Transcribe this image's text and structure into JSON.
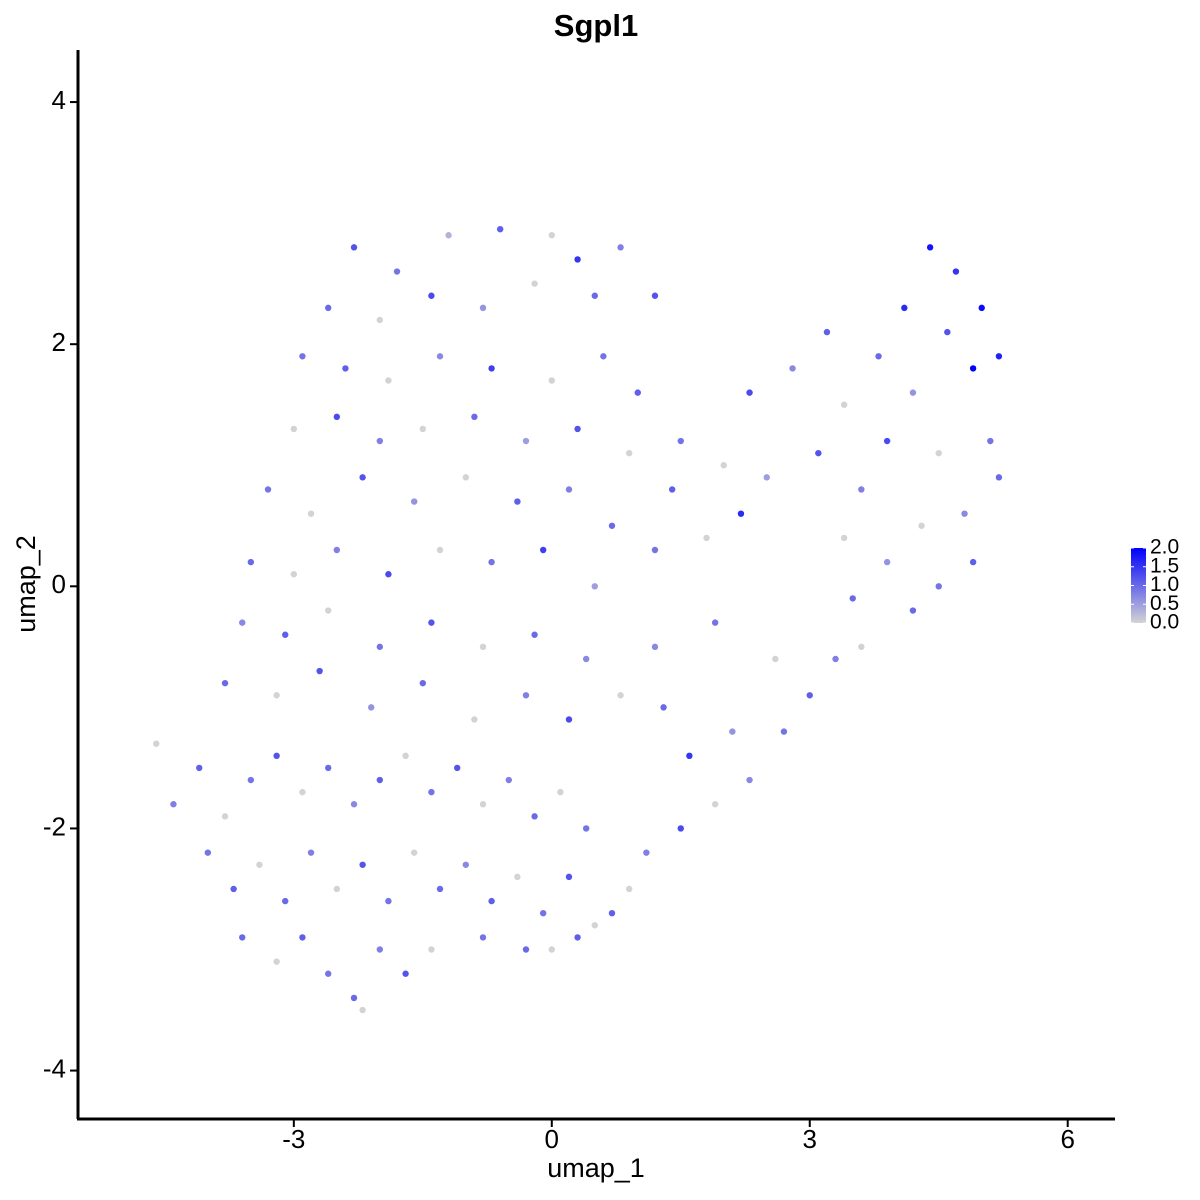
{
  "chart_data": {
    "type": "scatter",
    "title": "Sgpl1",
    "x_label": "umap_1",
    "y_label": "umap_2",
    "xlim": [
      -5.51,
      6.55
    ],
    "ylim": [
      -4.4,
      4.43
    ],
    "xticks": [
      -3,
      0,
      3,
      6
    ],
    "yticks": [
      -4,
      -2,
      0,
      2,
      4
    ],
    "color_low": "#d3d3d3",
    "color_high": "#0000ff",
    "color_range": [
      0,
      2
    ],
    "color_ticks": [
      {
        "value": 0,
        "label": "0.0"
      },
      {
        "value": 0.5,
        "label": "0.5"
      },
      {
        "value": 1,
        "label": "1.0"
      },
      {
        "value": 1.5,
        "label": "1.5"
      },
      {
        "value": 2,
        "label": "2.0"
      }
    ],
    "x": [
      -2.3,
      -1.8,
      -1.2,
      -0.6,
      0,
      0.3,
      0.8,
      -2.6,
      -2.0,
      -1.4,
      -0.8,
      -0.2,
      0.5,
      1.2,
      -2.9,
      -2.4,
      -1.9,
      -1.3,
      -0.7,
      0,
      0.6,
      1.0,
      -3.0,
      -2.5,
      -2.0,
      -1.5,
      -0.9,
      -0.3,
      0.3,
      0.9,
      1.5,
      2.0,
      2.3,
      2.8,
      3.2,
      3.4,
      3.8,
      4.1,
      4.4,
      4.7,
      5.0,
      5.2,
      4.9,
      4.6,
      4.2,
      3.9,
      4.5,
      5.1,
      4.8,
      5.2,
      4.3,
      3.6,
      3.1,
      2.5,
      2.2,
      1.8,
      4.5,
      4.9,
      3.9,
      3.4,
      1.4,
      1.2,
      3.5,
      3.3,
      3.0,
      2.7,
      3.6,
      4.2,
      2.3,
      1.9,
      1.5,
      1.1,
      0.9,
      0.7,
      2.1,
      1.6,
      1.3,
      2.6,
      1.9,
      1.2,
      0.8,
      -3.3,
      -2.8,
      -2.2,
      -1.6,
      -1.0,
      -0.4,
      0.2,
      0.7,
      -3.5,
      -3.0,
      -2.5,
      -1.9,
      -1.3,
      -0.7,
      -0.1,
      0.5,
      -3.6,
      -3.1,
      -2.6,
      -2.0,
      -1.4,
      -0.8,
      -0.2,
      0.4,
      -3.8,
      -3.2,
      -2.7,
      -2.1,
      -1.5,
      -0.9,
      -0.3,
      0.2,
      -4.6,
      -4.4,
      -4.1,
      -3.8,
      -3.5,
      -3.2,
      -2.9,
      -2.6,
      -2.3,
      -2.0,
      -1.7,
      -1.4,
      -1.1,
      -0.8,
      -0.5,
      -0.2,
      0.1,
      0.4,
      -4.0,
      -3.7,
      -3.4,
      -3.1,
      -2.8,
      -2.5,
      -2.2,
      -1.9,
      -1.6,
      -1.3,
      -1.0,
      -0.7,
      -0.4,
      -0.1,
      0.2,
      0.5,
      -3.6,
      -3.2,
      -2.9,
      -2.6,
      -2.3,
      -2.2,
      -2.0,
      -1.7,
      -1.4,
      -0.8,
      -0.3,
      0.0,
      0.3
    ],
    "y": [
      2.8,
      2.6,
      2.9,
      2.95,
      2.9,
      2.7,
      2.8,
      2.3,
      2.2,
      2.4,
      2.3,
      2.5,
      2.4,
      2.4,
      1.9,
      1.8,
      1.7,
      1.9,
      1.8,
      1.7,
      1.9,
      1.6,
      1.3,
      1.4,
      1.2,
      1.3,
      1.4,
      1.2,
      1.3,
      1.1,
      1.2,
      1.0,
      1.6,
      1.8,
      2.1,
      1.5,
      1.9,
      2.3,
      2.8,
      2.6,
      2.3,
      1.9,
      1.8,
      2.1,
      1.6,
      1.2,
      1.1,
      1.2,
      0.6,
      0.9,
      0.5,
      0.8,
      1.1,
      0.9,
      0.6,
      0.4,
      0.0,
      0.2,
      0.2,
      0.4,
      0.8,
      0.3,
      -0.1,
      -0.6,
      -0.9,
      -1.2,
      -0.5,
      -0.2,
      -1.6,
      -1.8,
      -2.0,
      -2.2,
      -2.5,
      -2.7,
      -1.2,
      -1.4,
      -1.0,
      -0.6,
      -0.3,
      -0.5,
      -0.9,
      0.8,
      0.6,
      0.9,
      0.7,
      0.9,
      0.7,
      0.8,
      0.5,
      0.2,
      0.1,
      0.3,
      0.1,
      0.3,
      0.2,
      0.3,
      0.0,
      -0.3,
      -0.4,
      -0.2,
      -0.5,
      -0.3,
      -0.5,
      -0.4,
      -0.6,
      -0.8,
      -0.9,
      -0.7,
      -1.0,
      -0.8,
      -1.1,
      -0.9,
      -1.1,
      -1.3,
      -1.8,
      -1.5,
      -1.9,
      -1.6,
      -1.4,
      -1.7,
      -1.5,
      -1.8,
      -1.6,
      -1.4,
      -1.7,
      -1.5,
      -1.8,
      -1.6,
      -1.9,
      -1.7,
      -2.0,
      -2.2,
      -2.5,
      -2.3,
      -2.6,
      -2.2,
      -2.5,
      -2.3,
      -2.6,
      -2.2,
      -2.5,
      -2.3,
      -2.6,
      -2.4,
      -2.7,
      -2.4,
      -2.8,
      -2.9,
      -3.1,
      -2.9,
      -3.2,
      -3.4,
      -3.5,
      -3.0,
      -3.2,
      -3.0,
      -2.9,
      -3.0,
      -3.0,
      -2.9
    ],
    "values": [
      1.2,
      0.9,
      0.3,
      1.1,
      0,
      1.5,
      0.8,
      1.0,
      0,
      1.3,
      0.6,
      0,
      1.0,
      1.2,
      0.9,
      1.1,
      0,
      0.7,
      1.4,
      0,
      0.9,
      1.1,
      0,
      1.3,
      0.8,
      0,
      1.0,
      0.5,
      1.2,
      0,
      0.9,
      0,
      1.3,
      0.7,
      1.1,
      0,
      1.0,
      1.6,
      1.8,
      1.5,
      1.9,
      1.7,
      2.0,
      1.2,
      0.6,
      1.3,
      0,
      0.9,
      0.7,
      1.0,
      0,
      0.8,
      1.2,
      0.5,
      1.6,
      0,
      0.9,
      1.1,
      0.6,
      0,
      1.1,
      0.9,
      1.0,
      0.8,
      1.1,
      0.9,
      0,
      1.0,
      0.7,
      0,
      1.3,
      0.8,
      0,
      1.1,
      0.6,
      1.5,
      1.0,
      0,
      0.9,
      0.7,
      0,
      0.9,
      0,
      1.2,
      0.6,
      0,
      1.1,
      0.8,
      1.0,
      1.0,
      0,
      0.8,
      1.3,
      0,
      0.9,
      1.4,
      0.5,
      0.7,
      1.1,
      0,
      0.9,
      1.2,
      0,
      1.0,
      0.7,
      1.0,
      0,
      1.2,
      0.6,
      1.0,
      0,
      0.8,
      1.3,
      0,
      0.8,
      1.1,
      0,
      0.9,
      1.2,
      0,
      1.0,
      0.7,
      1.1,
      0,
      0.9,
      1.2,
      0,
      0.8,
      1.0,
      0,
      0.9,
      0.9,
      1.1,
      0,
      1.0,
      0.8,
      0,
      1.2,
      0.9,
      0,
      1.0,
      0.7,
      1.1,
      0,
      0.9,
      1.2,
      0,
      1.0,
      0,
      1.1,
      0.9,
      1.0,
      0,
      0.8,
      1.2,
      0,
      0.9,
      1.0,
      0,
      1.1
    ]
  }
}
